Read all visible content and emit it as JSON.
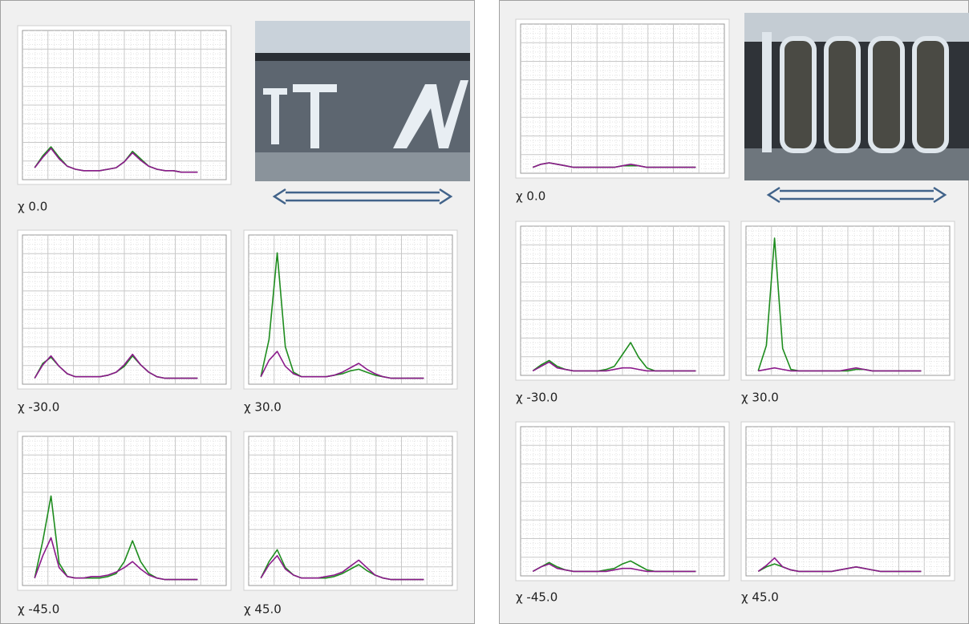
{
  "ylim": [
    0,
    100
  ],
  "panels": [
    {
      "plots": [
        {
          "label": "χ 0.0",
          "series": [
            {
              "color": "#1e8c1e",
              "values": [
                8,
                16,
                22,
                15,
                9,
                7,
                6,
                6,
                6,
                7,
                8,
                12,
                19,
                14,
                9,
                7,
                6,
                6,
                5,
                5,
                5
              ]
            },
            {
              "color": "#8b1a8b",
              "values": [
                8,
                15,
                21,
                14,
                9,
                7,
                6,
                6,
                6,
                7,
                8,
                12,
                18,
                13,
                9,
                7,
                6,
                6,
                5,
                5,
                5
              ]
            }
          ]
        },
        {
          "label": "χ -30.0",
          "series": [
            {
              "color": "#1e8c1e",
              "values": [
                4,
                14,
                18,
                12,
                7,
                5,
                5,
                5,
                5,
                6,
                8,
                12,
                19,
                13,
                8,
                5,
                4,
                4,
                4,
                4,
                4
              ]
            },
            {
              "color": "#8b1a8b",
              "values": [
                4,
                13,
                19,
                12,
                7,
                5,
                5,
                5,
                5,
                6,
                8,
                13,
                20,
                13,
                8,
                5,
                4,
                4,
                4,
                4,
                4
              ]
            }
          ]
        },
        {
          "label": "χ 30.0",
          "series": [
            {
              "color": "#1e8c1e",
              "values": [
                5,
                30,
                88,
                25,
                8,
                5,
                5,
                5,
                5,
                6,
                7,
                9,
                10,
                8,
                6,
                5,
                4,
                4,
                4,
                4,
                4
              ]
            },
            {
              "color": "#8b1a8b",
              "values": [
                5,
                16,
                22,
                12,
                7,
                5,
                5,
                5,
                5,
                6,
                8,
                11,
                14,
                10,
                7,
                5,
                4,
                4,
                4,
                4,
                4
              ]
            }
          ]
        },
        {
          "label": "χ -45.0",
          "series": [
            {
              "color": "#1e8c1e",
              "values": [
                5,
                30,
                60,
                15,
                6,
                5,
                5,
                5,
                5,
                6,
                8,
                16,
                30,
                16,
                8,
                5,
                4,
                4,
                4,
                4,
                4
              ]
            },
            {
              "color": "#8b1a8b",
              "values": [
                5,
                20,
                32,
                12,
                6,
                5,
                5,
                6,
                6,
                7,
                9,
                12,
                16,
                11,
                7,
                5,
                4,
                4,
                4,
                4,
                4
              ]
            }
          ]
        },
        {
          "label": "χ 45.0",
          "series": [
            {
              "color": "#1e8c1e",
              "values": [
                5,
                16,
                24,
                12,
                7,
                5,
                5,
                5,
                5,
                6,
                8,
                11,
                14,
                10,
                7,
                5,
                4,
                4,
                4,
                4,
                4
              ]
            },
            {
              "color": "#8b1a8b",
              "values": [
                5,
                14,
                20,
                11,
                7,
                5,
                5,
                5,
                6,
                7,
                9,
                13,
                17,
                12,
                7,
                5,
                4,
                4,
                4,
                4,
                4
              ]
            }
          ]
        }
      ]
    },
    {
      "plots": [
        {
          "label": "χ 0.0",
          "series": [
            {
              "color": "#1e8c1e",
              "values": [
                4,
                6,
                7,
                6,
                5,
                4,
                4,
                4,
                4,
                4,
                4,
                5,
                5,
                5,
                4,
                4,
                4,
                4,
                4,
                4,
                4
              ]
            },
            {
              "color": "#8b1a8b",
              "values": [
                4,
                6,
                7,
                6,
                5,
                4,
                4,
                4,
                4,
                4,
                4,
                5,
                6,
                5,
                4,
                4,
                4,
                4,
                4,
                4,
                4
              ]
            }
          ]
        },
        {
          "label": "χ -30.0",
          "series": [
            {
              "color": "#1e8c1e",
              "values": [
                3,
                7,
                10,
                6,
                4,
                3,
                3,
                3,
                3,
                4,
                6,
                14,
                22,
                12,
                5,
                3,
                3,
                3,
                3,
                3,
                3
              ]
            },
            {
              "color": "#8b1a8b",
              "values": [
                3,
                6,
                9,
                5,
                4,
                3,
                3,
                3,
                3,
                3,
                4,
                5,
                5,
                4,
                3,
                3,
                3,
                3,
                3,
                3,
                3
              ]
            }
          ]
        },
        {
          "label": "χ 30.0",
          "series": [
            {
              "color": "#1e8c1e",
              "values": [
                3,
                20,
                92,
                18,
                4,
                3,
                3,
                3,
                3,
                3,
                3,
                3,
                4,
                4,
                3,
                3,
                3,
                3,
                3,
                3,
                3
              ]
            },
            {
              "color": "#8b1a8b",
              "values": [
                3,
                4,
                5,
                4,
                3,
                3,
                3,
                3,
                3,
                3,
                3,
                4,
                5,
                4,
                3,
                3,
                3,
                3,
                3,
                3,
                3
              ]
            }
          ]
        },
        {
          "label": "χ -45.0",
          "series": [
            {
              "color": "#1e8c1e",
              "values": [
                3,
                6,
                9,
                6,
                4,
                3,
                3,
                3,
                3,
                4,
                5,
                8,
                10,
                7,
                4,
                3,
                3,
                3,
                3,
                3,
                3
              ]
            },
            {
              "color": "#8b1a8b",
              "values": [
                3,
                6,
                8,
                5,
                4,
                3,
                3,
                3,
                3,
                3,
                4,
                5,
                5,
                4,
                3,
                3,
                3,
                3,
                3,
                3,
                3
              ]
            }
          ]
        },
        {
          "label": "χ 45.0",
          "series": [
            {
              "color": "#1e8c1e",
              "values": [
                3,
                6,
                8,
                6,
                4,
                3,
                3,
                3,
                3,
                3,
                4,
                5,
                6,
                5,
                4,
                3,
                3,
                3,
                3,
                3,
                3
              ]
            },
            {
              "color": "#8b1a8b",
              "values": [
                3,
                7,
                12,
                6,
                4,
                3,
                3,
                3,
                3,
                3,
                4,
                5,
                6,
                5,
                4,
                3,
                3,
                3,
                3,
                3,
                3
              ]
            }
          ]
        }
      ]
    }
  ]
}
